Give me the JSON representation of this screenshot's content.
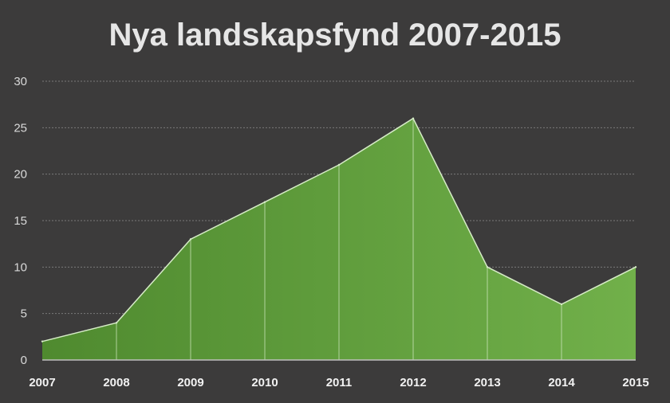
{
  "chart_data": {
    "type": "area",
    "title": "Nya landskapsfynd 2007-2015",
    "xlabel": "",
    "ylabel": "",
    "categories": [
      "2007",
      "2008",
      "2009",
      "2010",
      "2011",
      "2012",
      "2013",
      "2014",
      "2015"
    ],
    "values": [
      2,
      4,
      13,
      17,
      21,
      26,
      10,
      6,
      10
    ],
    "ylim": [
      0,
      30
    ],
    "yticks": [
      0,
      5,
      10,
      15,
      20,
      25,
      30
    ],
    "grid": true,
    "legend": "none",
    "colors": {
      "background": "#3c3b3b",
      "fill_start": "#4f8a2f",
      "fill_end": "#71b04a",
      "line": "#d6ecc7",
      "grid": "#7a7a7a",
      "axis": "#bfbfbf",
      "title": "#e6e6e6"
    }
  }
}
